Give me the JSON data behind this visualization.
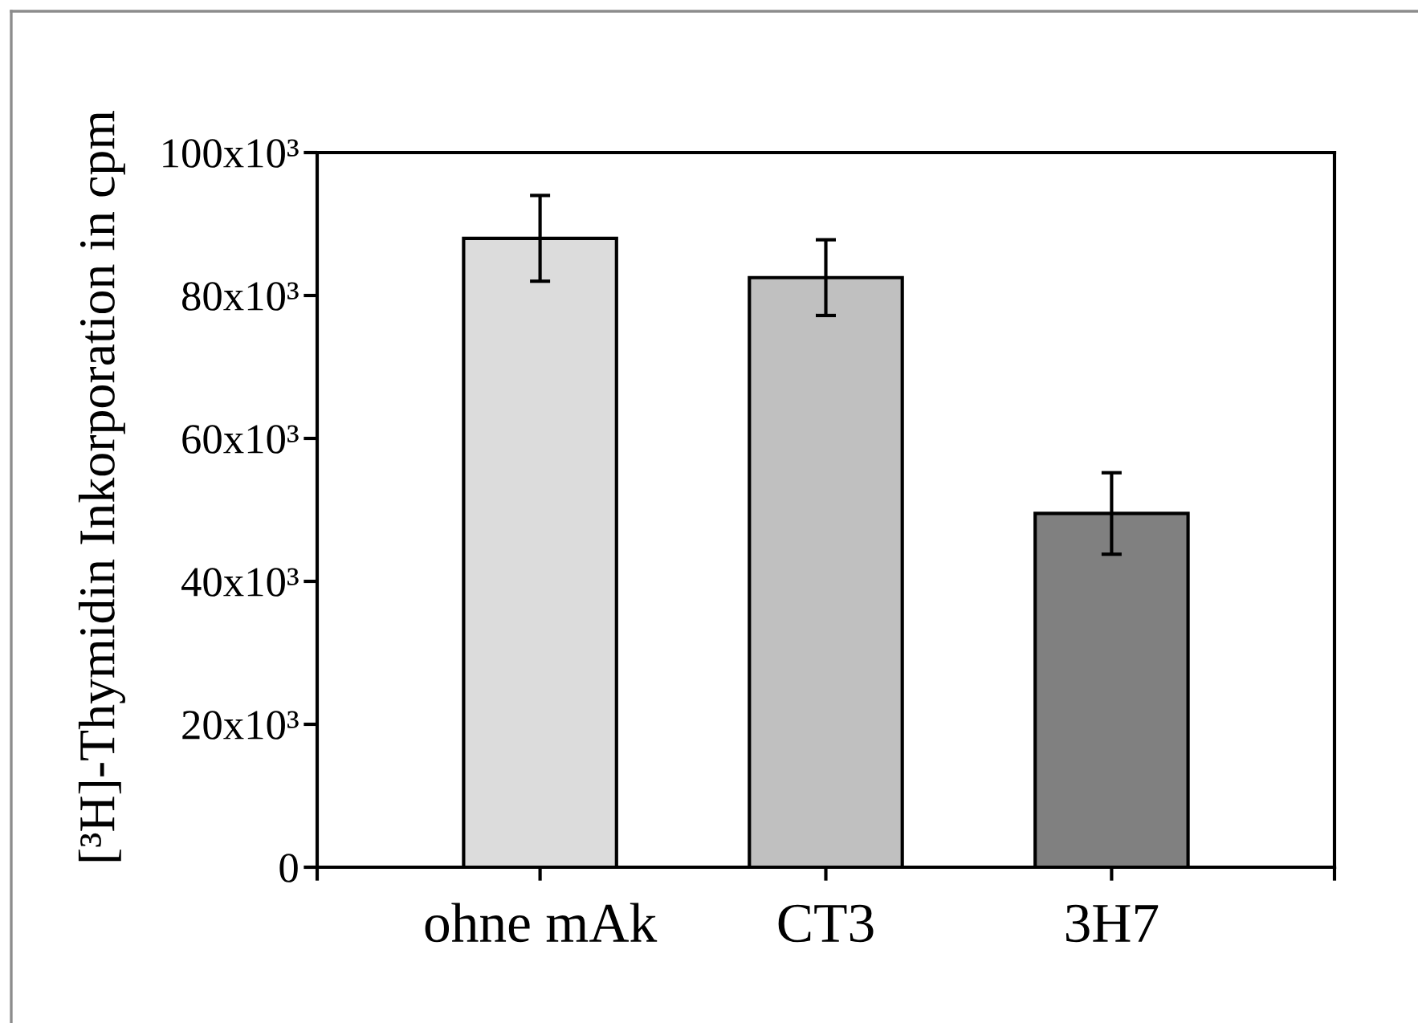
{
  "chart_data": {
    "type": "bar",
    "ylabel": "[³H]-Thymidin Inkorporation in cpm",
    "categories": [
      "ohne mAk",
      "CT3",
      "3H7"
    ],
    "values": [
      88000,
      82500,
      49500
    ],
    "errors": [
      6000,
      5300,
      5700
    ],
    "colors": [
      "#dcdcdc",
      "#c0c0c0",
      "#808080"
    ],
    "ylim": [
      0,
      100000
    ],
    "yticks": [
      0,
      {
        "value": 20000,
        "label": "20x10³"
      },
      {
        "value": 40000,
        "label": "40x10³"
      },
      {
        "value": 60000,
        "label": "60x10³"
      },
      {
        "value": 80000,
        "label": "80x10³"
      },
      {
        "value": 100000,
        "label": "100x10³"
      }
    ]
  }
}
